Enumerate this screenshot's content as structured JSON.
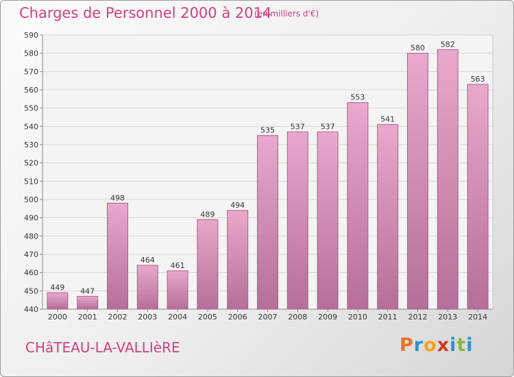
{
  "header": {
    "title": "Charges de Personnel 2000 à 2014",
    "subtitle": "(en milliers d'€)"
  },
  "footer": {
    "town": "CHâTEAU-LA-VALLIèRE",
    "logo": "Proxiti"
  },
  "colors": {
    "title": "#d0417f",
    "bar_top": "#e9a8cc",
    "bar_bottom": "#b56f98",
    "bar_border": "#b55c8c",
    "logo_letters": [
      "#e8732a",
      "#2e8fd0",
      "#f2a21c",
      "#d2391f",
      "#2e8fd0",
      "#86b83a",
      "#2e8fd0"
    ]
  },
  "chart_data": {
    "type": "bar",
    "title": "Charges de Personnel 2000 à 2014",
    "subtitle": "(en milliers d'€)",
    "xlabel": "",
    "ylabel": "",
    "categories": [
      "2000",
      "2001",
      "2002",
      "2003",
      "2004",
      "2005",
      "2006",
      "2007",
      "2008",
      "2009",
      "2010",
      "2011",
      "2012",
      "2013",
      "2014"
    ],
    "values": [
      449,
      447,
      498,
      464,
      461,
      489,
      494,
      535,
      537,
      537,
      553,
      541,
      580,
      582,
      563
    ],
    "ylim": [
      440,
      590
    ],
    "yticks": [
      440,
      450,
      460,
      470,
      480,
      490,
      500,
      510,
      520,
      530,
      540,
      550,
      560,
      570,
      580,
      590
    ],
    "grid": "horizontal",
    "data_labels": true
  }
}
